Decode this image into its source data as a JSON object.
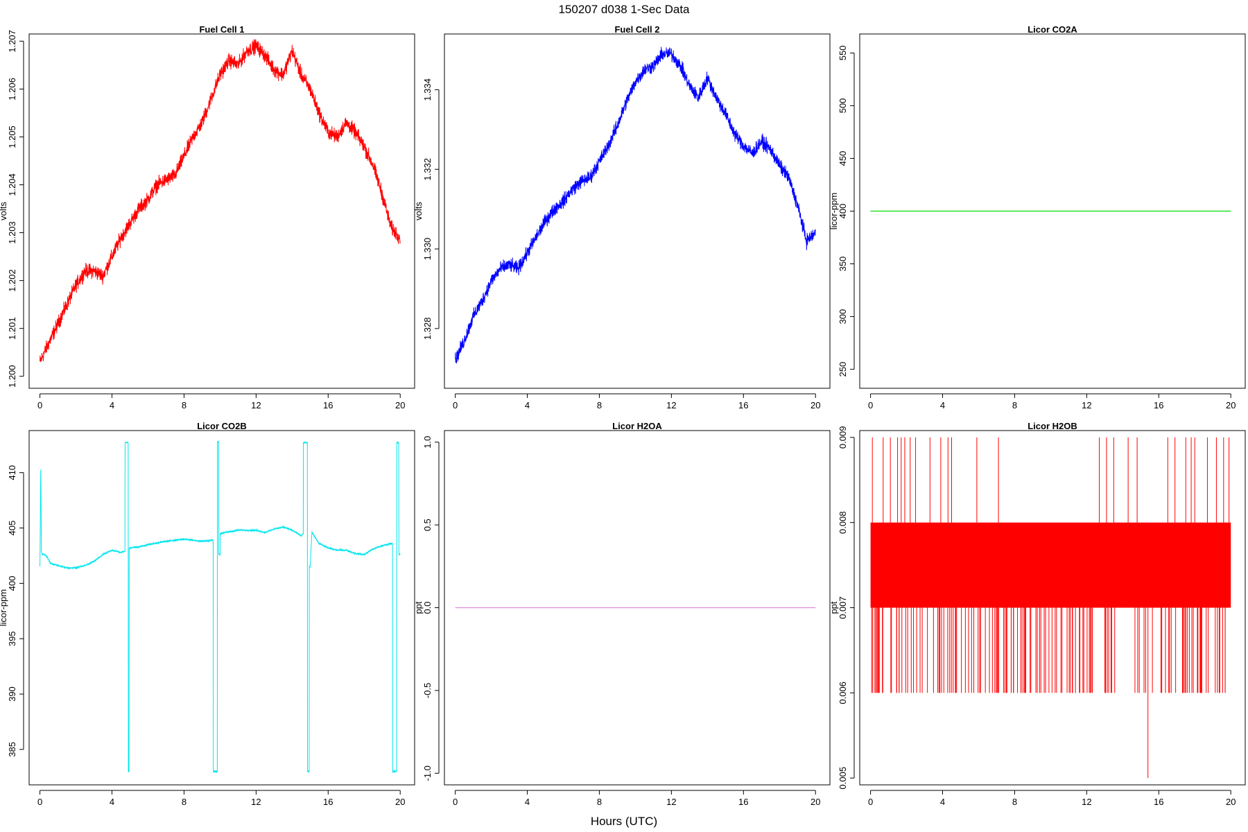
{
  "title": "150207   d038   1-Sec Data",
  "xlabel": "Hours (UTC)",
  "chart_data": [
    {
      "type": "line",
      "title": "Fuel Cell 1",
      "ylabel": "volts",
      "color": "#ff0000",
      "xlim": [
        -0.6,
        20.8
      ],
      "ylim": [
        1.19975,
        1.20715
      ],
      "xticks": [
        0,
        4,
        8,
        12,
        16,
        20
      ],
      "yticks": [
        1.2,
        1.201,
        1.202,
        1.203,
        1.204,
        1.205,
        1.206,
        1.207
      ],
      "ytick_labels": [
        "1.200",
        "1.201",
        "1.202",
        "1.203",
        "1.204",
        "1.205",
        "1.206",
        "1.207"
      ],
      "series": [
        {
          "x": [
            0,
            0.5,
            1,
            1.5,
            2,
            2.5,
            3,
            3.5,
            4,
            4.5,
            5,
            5.5,
            6,
            6.5,
            7,
            7.5,
            8,
            8.5,
            9,
            9.5,
            10,
            10.5,
            11,
            11.5,
            12,
            12.5,
            13,
            13.5,
            14,
            14.5,
            15,
            15.5,
            16,
            16.5,
            17,
            17.5,
            18,
            18.5,
            19,
            19.5,
            20
          ],
          "y": [
            1.2003,
            1.2007,
            1.2011,
            1.2015,
            1.2019,
            1.2022,
            1.2022,
            1.2021,
            1.2025,
            1.2029,
            1.2032,
            1.2035,
            1.2037,
            1.204,
            1.2041,
            1.2042,
            1.2046,
            1.205,
            1.2053,
            1.2058,
            1.2063,
            1.2066,
            1.2065,
            1.2068,
            1.2069,
            1.2067,
            1.2064,
            1.2063,
            1.2068,
            1.2063,
            1.206,
            1.2055,
            1.2051,
            1.205,
            1.2053,
            1.2051,
            1.2048,
            1.2044,
            1.2038,
            1.2031,
            1.2029
          ],
          "noise": 0.00022
        }
      ]
    },
    {
      "type": "line",
      "title": "Fuel Cell 2",
      "ylabel": "volts",
      "color": "#0000ff",
      "xlim": [
        -0.6,
        20.8
      ],
      "ylim": [
        1.3265,
        1.3354
      ],
      "xticks": [
        0,
        4,
        8,
        12,
        16,
        20
      ],
      "yticks": [
        1.328,
        1.33,
        1.332,
        1.334
      ],
      "ytick_labels": [
        "1.328",
        "1.330",
        "1.332",
        "1.334"
      ],
      "series": [
        {
          "x": [
            0,
            0.5,
            1,
            1.5,
            2,
            2.5,
            3,
            3.5,
            4,
            4.5,
            5,
            5.5,
            6,
            6.5,
            7,
            7.5,
            8,
            8.5,
            9,
            9.5,
            10,
            10.5,
            11,
            11.5,
            12,
            12.5,
            13,
            13.5,
            14,
            14.5,
            15,
            15.5,
            16,
            16.5,
            17,
            17.5,
            18,
            18.5,
            19,
            19.5,
            20
          ],
          "y": [
            1.3272,
            1.3277,
            1.3283,
            1.3287,
            1.3292,
            1.3295,
            1.3296,
            1.3295,
            1.3299,
            1.3303,
            1.3307,
            1.331,
            1.3312,
            1.3315,
            1.3317,
            1.3318,
            1.3322,
            1.3326,
            1.3331,
            1.3337,
            1.3342,
            1.3345,
            1.3346,
            1.3349,
            1.3349,
            1.3346,
            1.3341,
            1.3338,
            1.3343,
            1.3338,
            1.3334,
            1.3329,
            1.3326,
            1.3324,
            1.3327,
            1.3325,
            1.3321,
            1.3318,
            1.3311,
            1.3302,
            1.3304
          ],
          "noise": 0.00025
        }
      ]
    },
    {
      "type": "line",
      "title": "Licor CO2A",
      "ylabel": "licor-ppm",
      "color": "#00dd00",
      "xlim": [
        -0.6,
        20.8
      ],
      "ylim": [
        232,
        568
      ],
      "xticks": [
        0,
        4,
        8,
        12,
        16,
        20
      ],
      "yticks": [
        250,
        300,
        350,
        400,
        450,
        500,
        550
      ],
      "ytick_labels": [
        "250",
        "300",
        "350",
        "400",
        "450",
        "500",
        "550"
      ],
      "series": [
        {
          "x": [
            0,
            20
          ],
          "y": [
            400,
            400
          ]
        }
      ]
    },
    {
      "type": "line",
      "title": "Licor CO2B",
      "ylabel": "licor-ppm",
      "color": "#00e5ee",
      "xlim": [
        -0.6,
        20.8
      ],
      "ylim": [
        381.8,
        413.8
      ],
      "xticks": [
        0,
        4,
        8,
        12,
        16,
        20
      ],
      "yticks": [
        385,
        390,
        395,
        400,
        405,
        410
      ],
      "ytick_labels": [
        "385",
        "390",
        "395",
        "400",
        "405",
        "410"
      ],
      "series": [
        {
          "x": [
            0.0,
            0.05,
            0.08,
            0.12,
            0.35,
            0.6,
            1.0,
            1.5,
            2.0,
            2.5,
            3.0,
            3.5,
            4.0,
            4.5,
            4.72,
            4.72,
            4.9,
            4.9,
            4.95,
            4.95,
            5.5,
            6.0,
            7.0,
            8.0,
            9.0,
            9.6,
            9.62,
            9.62,
            9.85,
            9.85,
            9.92,
            9.92,
            10.0,
            10.0,
            10.3,
            11.0,
            12.0,
            12.5,
            13.0,
            13.5,
            14.0,
            14.5,
            14.62,
            14.62,
            14.85,
            14.85,
            14.95,
            14.95,
            15.0,
            15.1,
            15.5,
            16.0,
            16.5,
            17.0,
            17.5,
            18.0,
            18.5,
            19.0,
            19.5,
            19.58,
            19.58,
            19.8,
            19.8,
            19.92,
            19.92,
            20.0
          ],
          "y": [
            401.5,
            411.2,
            402.8,
            402.7,
            402.5,
            401.8,
            401.6,
            401.4,
            401.4,
            401.6,
            402.0,
            402.6,
            403.0,
            402.8,
            402.9,
            412.7,
            412.7,
            383.0,
            383.0,
            403.2,
            403.3,
            403.5,
            403.8,
            404.0,
            403.8,
            403.9,
            403.8,
            383.0,
            383.0,
            412.8,
            412.8,
            402.6,
            402.6,
            404.5,
            404.6,
            404.8,
            404.8,
            404.6,
            404.9,
            405.1,
            404.8,
            404.3,
            404.5,
            412.7,
            412.7,
            383.0,
            383.0,
            401.5,
            401.5,
            404.6,
            403.6,
            403.2,
            403.0,
            403.0,
            402.7,
            402.6,
            403.1,
            403.4,
            403.6,
            403.6,
            383.0,
            383.0,
            412.7,
            412.7,
            402.6,
            402.6
          ],
          "noise": 0.12
        }
      ]
    },
    {
      "type": "line",
      "title": "Licor H2OA",
      "ylabel": "ppt",
      "color": "#dd88dd",
      "xlim": [
        -0.6,
        20.8
      ],
      "ylim": [
        -1.07,
        1.07
      ],
      "xticks": [
        0,
        4,
        8,
        12,
        16,
        20
      ],
      "yticks": [
        -1.0,
        -0.5,
        0.0,
        0.5,
        1.0
      ],
      "ytick_labels": [
        "-1.0",
        "-0.5",
        "0.0",
        "0.5",
        "1.0"
      ],
      "series": [
        {
          "x": [
            0,
            20
          ],
          "y": [
            0,
            0
          ]
        }
      ]
    },
    {
      "type": "line",
      "title": "Licor H2OB",
      "ylabel": "ppt",
      "color": "#ff0000",
      "xlim": [
        -0.6,
        20.8
      ],
      "ylim": [
        0.00492,
        0.00908
      ],
      "xticks": [
        0,
        4,
        8,
        12,
        16,
        20
      ],
      "yticks": [
        0.005,
        0.006,
        0.007,
        0.008,
        0.009
      ],
      "ytick_labels": [
        "0.005",
        "0.006",
        "0.007",
        "0.008",
        "0.009"
      ],
      "series": [
        {
          "x": [
            0,
            20
          ],
          "band": [
            0.007,
            0.008
          ],
          "spikes_up_to": 0.009,
          "spikes_x": [
            0.1,
            0.7,
            1.1,
            1.5,
            1.7,
            1.9,
            2.2,
            2.5,
            3.3,
            3.9,
            4.3,
            4.5,
            5.9,
            7.1,
            12.7,
            13.1,
            13.5,
            14.3,
            14.8,
            16.5,
            16.9,
            17.5,
            17.8,
            18.0,
            18.7,
            19.2,
            19.6,
            19.9
          ],
          "spikes_down_to": 0.006,
          "min_spike": {
            "x": 15.4,
            "y": 0.005
          }
        }
      ]
    }
  ]
}
